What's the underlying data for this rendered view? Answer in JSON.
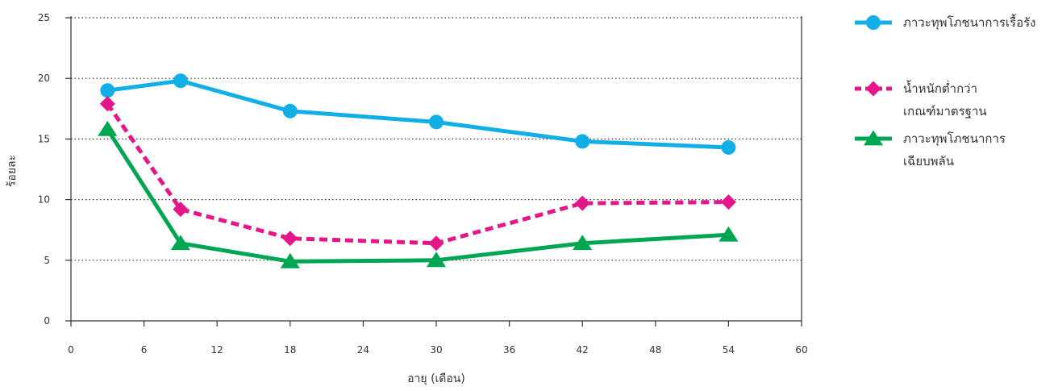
{
  "chart_data": {
    "type": "line",
    "xlabel": "อายุ (เดือน)",
    "ylabel": "ร้อยละ",
    "xlim": [
      0,
      60
    ],
    "ylim": [
      0,
      25
    ],
    "xticks": [
      "0",
      "6",
      "12",
      "18",
      "24",
      "30",
      "36",
      "42",
      "48",
      "54",
      "60"
    ],
    "yticks": [
      "0",
      "5",
      "10",
      "15",
      "20",
      "25"
    ],
    "grid": "horizontal dotted",
    "legend_position": "right",
    "series": [
      {
        "name": "ภาวะทุพโภชนาการเรื้อรัง",
        "color": "#12aee6",
        "marker": "circle",
        "style": "solid",
        "x": [
          3,
          9,
          18,
          30,
          42,
          54
        ],
        "y": [
          19.0,
          19.8,
          17.3,
          16.4,
          14.8,
          14.3
        ]
      },
      {
        "name": "น้ำหนักต่ำกว่า\nเกณฑ์มาตรฐาน",
        "color": "#e5168a",
        "marker": "diamond",
        "style": "dashed",
        "x": [
          3,
          9,
          18,
          30,
          42,
          54
        ],
        "y": [
          17.9,
          9.2,
          6.8,
          6.4,
          9.7,
          9.8
        ]
      },
      {
        "name": "ภาวะทุพโภชนาการ\nเฉียบพลัน",
        "color": "#00a651",
        "marker": "triangle",
        "style": "solid",
        "x": [
          3,
          9,
          18,
          30,
          42,
          54
        ],
        "y": [
          15.8,
          6.4,
          4.9,
          5.0,
          6.4,
          7.1
        ]
      }
    ]
  }
}
